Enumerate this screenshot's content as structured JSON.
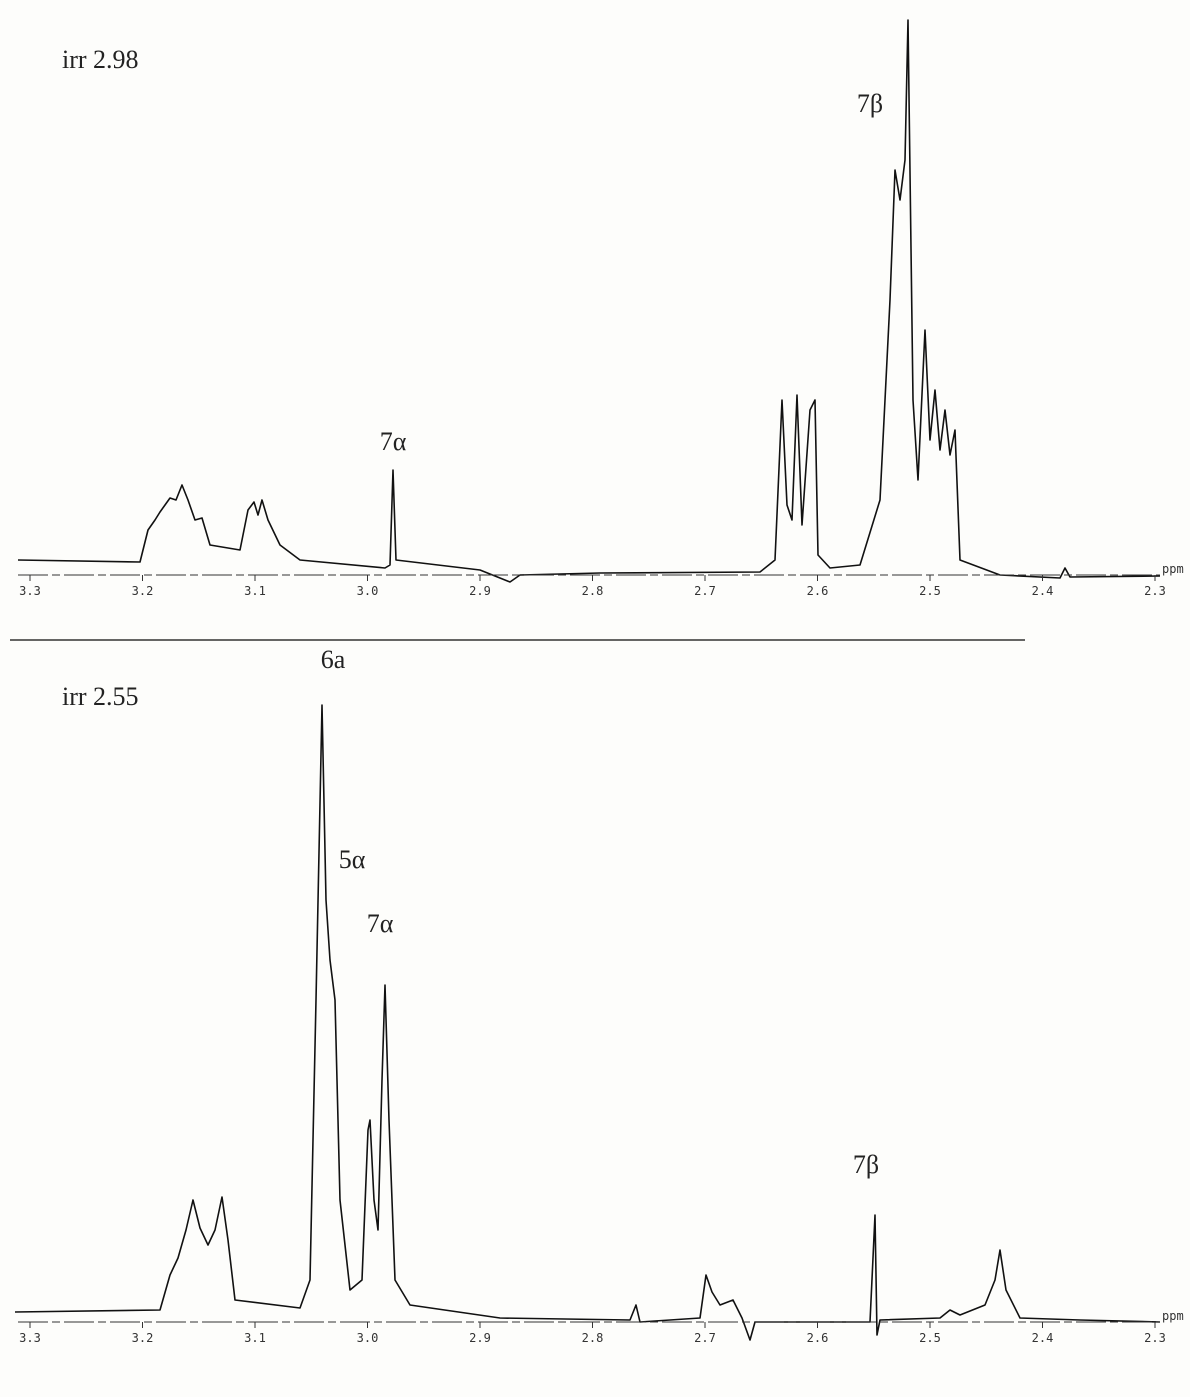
{
  "panels": [
    {
      "label": "irr 2.98",
      "peaks": [
        "7α",
        "7β"
      ],
      "xticks": [
        3.3,
        3.2,
        3.1,
        {
          "value": 3,
          "label": "3.0"
        },
        2.9,
        2.8,
        2.7,
        2.6,
        2.5,
        2.4,
        2.3
      ],
      "unit": "ppm"
    },
    {
      "label": "irr 2.55",
      "peaks": [
        "6a",
        "5α",
        "7α",
        "7β"
      ],
      "xticks": [
        3.3,
        3.2,
        3.1,
        {
          "value": 3,
          "label": "3.0"
        },
        2.9,
        2.8,
        2.7,
        2.6,
        2.5,
        2.4,
        2.3
      ],
      "unit": "ppm"
    }
  ]
}
